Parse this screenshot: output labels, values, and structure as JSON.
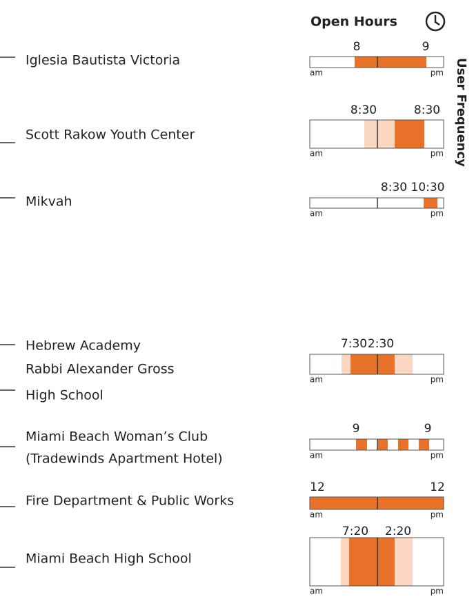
{
  "header": {
    "title": "Open Hours",
    "side_label": "User Frequency"
  },
  "axis": {
    "start": "am",
    "end": "pm"
  },
  "places": [
    {
      "name_lines": [
        "Iglesia Bautista Victoria"
      ],
      "open": "8",
      "close": "9"
    },
    {
      "name_lines": [
        "Scott Rakow Youth Center"
      ],
      "open": "8:30",
      "close": "8:30"
    },
    {
      "name_lines": [
        "Mikvah"
      ],
      "open": "8:30",
      "close": "10:30"
    },
    {
      "name_lines": [
        "Hebrew Academy",
        "Rabbi Alexander Gross",
        "High School"
      ],
      "open": "7:30",
      "close": "2:30"
    },
    {
      "name_lines": [
        "Miami Beach Woman’s Club",
        "(Tradewinds Apartment Hotel)"
      ],
      "open": "9",
      "close": "9"
    },
    {
      "name_lines": [
        "Fire Department & Public Works"
      ],
      "open": "12",
      "close": "12"
    },
    {
      "name_lines": [
        "Miami Beach High School"
      ],
      "open": "7:20",
      "close": "2:20"
    }
  ]
}
